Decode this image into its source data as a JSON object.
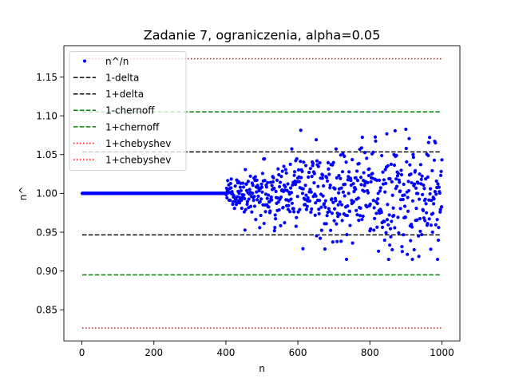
{
  "chart_data": {
    "type": "scatter",
    "title": "Zadanie 7, ograniczenia, alpha=0.05",
    "xlabel": "n",
    "ylabel": "n^",
    "xlim": [
      -50,
      1050
    ],
    "ylim": [
      0.81,
      1.19
    ],
    "xticks": [
      {
        "value": 0,
        "label": "0"
      },
      {
        "value": 200,
        "label": "200"
      },
      {
        "value": 400,
        "label": "400"
      },
      {
        "value": 600,
        "label": "600"
      },
      {
        "value": 800,
        "label": "800"
      },
      {
        "value": 1000,
        "label": "1000"
      }
    ],
    "yticks": [
      {
        "value": 0.85,
        "label": "0.85"
      },
      {
        "value": 0.9,
        "label": "0.90"
      },
      {
        "value": 0.95,
        "label": "0.95"
      },
      {
        "value": 1.0,
        "label": "1.00"
      },
      {
        "value": 1.05,
        "label": "1.05"
      },
      {
        "value": 1.1,
        "label": "1.10"
      },
      {
        "value": 1.15,
        "label": "1.15"
      }
    ],
    "legend_position": "top-left",
    "grid": false,
    "scatter": {
      "name": "n^/n",
      "color": "#0000ff",
      "exact_until": 400,
      "exact_value": 1.0,
      "x_end": 1000,
      "spread_scale": 1.0
    },
    "lines": [
      {
        "name": "1-delta",
        "y": 0.9465,
        "color": "#000000",
        "style": "dashed"
      },
      {
        "name": "1+delta",
        "y": 1.0535,
        "color": "#000000",
        "style": "dashed"
      },
      {
        "name": "1-chernoff",
        "y": 0.895,
        "color": "#008000",
        "style": "dashed"
      },
      {
        "name": "1+chernoff",
        "y": 1.105,
        "color": "#008000",
        "style": "dashed"
      },
      {
        "name": "1+chebyshev",
        "y": 0.8265,
        "color": "#ff0000",
        "style": "dotted"
      },
      {
        "name": "1+chebyshev",
        "y": 1.1735,
        "color": "#ff0000",
        "style": "dotted"
      }
    ],
    "line_x_range": [
      1,
      1000
    ]
  }
}
